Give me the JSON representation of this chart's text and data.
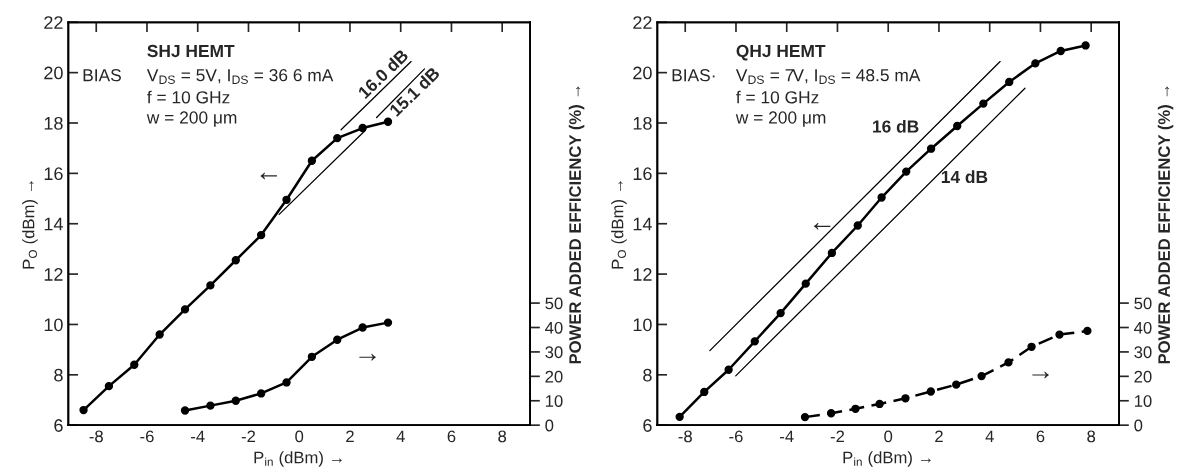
{
  "chart_data": [
    {
      "type": "line",
      "xlabel": "P$_{in}$ (dBm) →",
      "ylabel": "P$_{O}$ (dBm) →",
      "y2label": "POWER ADDED EFFICIENCY (%) →",
      "xlim": [
        -9.1,
        9.1
      ],
      "xticks": [
        -8,
        -6,
        -4,
        -2,
        0,
        2,
        4,
        6,
        8
      ],
      "ylim": [
        6,
        22
      ],
      "yticks": [
        6,
        8,
        10,
        12,
        14,
        16,
        18,
        20,
        22
      ],
      "y2lim": [
        0,
        165
      ],
      "y2ticks": [
        0,
        10,
        20,
        30,
        40,
        50
      ],
      "grid": false,
      "legend": false,
      "series": [
        {
          "color": "#000000",
          "marker": "circle",
          "line_style": "solid",
          "x": [
            -8.5,
            -7.5,
            -6.5,
            -5.5,
            -4.5,
            -3.5,
            -2.5,
            -1.5,
            -0.5,
            0.5,
            1.5,
            2.5,
            3.5
          ],
          "values": [
            6.6,
            7.55,
            8.4,
            9.6,
            10.6,
            11.55,
            12.55,
            13.55,
            14.95,
            16.5,
            17.4,
            17.8,
            18.05
          ]
        },
        {
          "color": "#000000",
          "marker": "circle",
          "line_style": "solid",
          "axis": "y2",
          "x": [
            -4.5,
            -3.5,
            -2.5,
            -1.5,
            -0.5,
            0.5,
            1.5,
            2.5,
            3.5
          ],
          "values": [
            6,
            8,
            10,
            13,
            17.5,
            28,
            35,
            40,
            42
          ]
        },
        {
          "color": "#000000",
          "marker": "none",
          "line_style": "solid",
          "x": [
            1.65,
            4.41
          ],
          "values": [
            17.73,
            20.44
          ]
        },
        {
          "color": "#000000",
          "marker": "none",
          "line_style": "solid",
          "x": [
            -0.79,
            2.6,
            2.8,
            3.05,
            4.94
          ],
          "values": [
            14.37,
            17.7,
            null,
            18.22,
            20.15
          ]
        }
      ],
      "annotations": [
        "SHJ HEMT",
        "BIAS",
        "V$_{DS}$ = 5V, I$_{DS}$ = 36 6 mA",
        "f = 10 GHz",
        "w = 200 μm",
        "16.0 dB",
        "15.1 dB",
        "←",
        "→"
      ]
    },
    {
      "type": "line",
      "xlabel": "P$_{in}$ (dBm) →",
      "ylabel": "P$_{O}$ (dBm) →",
      "y2label": "POWER ADDED EFFICIENCY (%) →",
      "xlim": [
        -9.1,
        9.1
      ],
      "xticks": [
        -8,
        -6,
        -4,
        -2,
        0,
        2,
        4,
        6,
        8
      ],
      "ylim": [
        6,
        22
      ],
      "yticks": [
        6,
        8,
        10,
        12,
        14,
        16,
        18,
        20,
        22
      ],
      "y2lim": [
        0,
        165
      ],
      "y2ticks": [
        0,
        10,
        20,
        30,
        40,
        50
      ],
      "grid": false,
      "legend": false,
      "series": [
        {
          "color": "#000000",
          "marker": "circle",
          "line_style": "solid",
          "x": [
            -8.22,
            -7.25,
            -6.29,
            -5.26,
            -4.24,
            -3.25,
            -2.22,
            -1.2,
            -0.26,
            0.71,
            1.69,
            2.72,
            3.75,
            4.77,
            5.8,
            6.8,
            7.78
          ],
          "values": [
            6.33,
            7.32,
            8.2,
            9.33,
            10.45,
            11.62,
            12.84,
            13.93,
            15.04,
            16.07,
            16.98,
            17.88,
            18.77,
            19.63,
            20.37,
            20.86,
            21.08
          ]
        },
        {
          "color": "#000000",
          "marker": "circle",
          "line_style": "dashed",
          "axis": "y2",
          "x": [
            -3.28,
            -2.25,
            -1.29,
            -0.34,
            0.68,
            1.68,
            2.68,
            3.68,
            4.74,
            5.65,
            6.75,
            7.85
          ],
          "values": [
            3.3,
            4.9,
            6.7,
            8.7,
            11,
            13.8,
            16.6,
            20.1,
            25.7,
            32.1,
            37.1,
            38.6
          ]
        },
        {
          "color": "#000000",
          "marker": "none",
          "line_style": "solid",
          "x": [
            -7.03,
            4.41
          ],
          "values": [
            8.96,
            20.44
          ]
        },
        {
          "color": "#000000",
          "marker": "none",
          "line_style": "solid",
          "x": [
            -6.01,
            5.39
          ],
          "values": [
            7.96,
            19.38
          ]
        }
      ],
      "annotations": [
        "QHJ HEMT",
        "BIAS·",
        "V$_{DS}$ = 7V, I$_{DS}$ = 48.5 mA",
        "f = 10 GHz",
        "w = 200 μm",
        "16 dB",
        "14 dB",
        "←",
        "→"
      ]
    }
  ]
}
